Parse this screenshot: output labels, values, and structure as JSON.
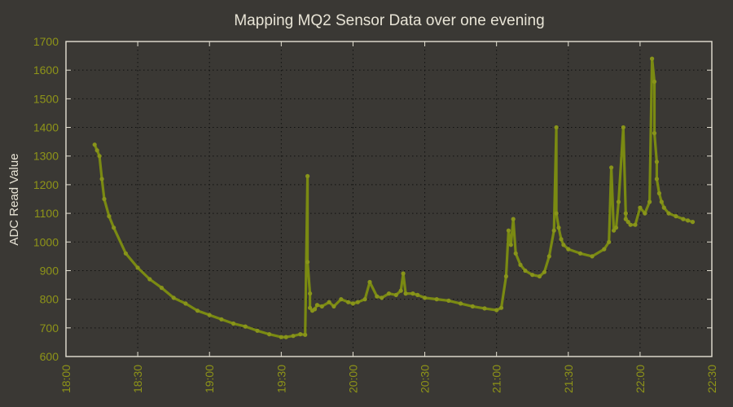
{
  "colors": {
    "background": "#3a3834",
    "series": "#7a8a12",
    "tick_text": "#8e9418",
    "label_text": "#e8e4d6",
    "grid": "#0f0f0f"
  },
  "chart_data": {
    "type": "line",
    "title": "Mapping MQ2 Sensor Data over one evening",
    "xlabel": "",
    "ylabel": "ADC Read Value",
    "xlim": [
      "18:00",
      "22:30"
    ],
    "ylim": [
      600,
      1700
    ],
    "x_ticks": [
      "18:00",
      "18:30",
      "19:00",
      "19:30",
      "20:00",
      "20:30",
      "21:00",
      "21:30",
      "22:00",
      "22:30"
    ],
    "y_ticks": [
      600,
      700,
      800,
      900,
      1000,
      1100,
      1200,
      1300,
      1400,
      1500,
      1600,
      1700
    ],
    "grid": true,
    "series": [
      {
        "name": "",
        "x": [
          "18:12",
          "18:13",
          "18:14",
          "18:15",
          "18:16",
          "18:18",
          "18:20",
          "18:25",
          "18:30",
          "18:35",
          "18:40",
          "18:45",
          "18:50",
          "18:55",
          "19:00",
          "19:05",
          "19:10",
          "19:15",
          "19:20",
          "19:25",
          "19:30",
          "19:32",
          "19:35",
          "19:38",
          "19:40",
          "19:41",
          "19:41",
          "19:42",
          "19:42",
          "19:43",
          "19:44",
          "19:45",
          "19:47",
          "19:50",
          "19:52",
          "19:55",
          "19:58",
          "20:00",
          "20:02",
          "20:05",
          "20:07",
          "20:10",
          "20:12",
          "20:15",
          "20:18",
          "20:20",
          "20:21",
          "20:22",
          "20:25",
          "20:27",
          "20:30",
          "20:35",
          "20:40",
          "20:45",
          "20:50",
          "20:55",
          "21:00",
          "21:02",
          "21:04",
          "21:05",
          "21:06",
          "21:07",
          "21:08",
          "21:10",
          "21:12",
          "21:15",
          "21:18",
          "21:20",
          "21:22",
          "21:24",
          "21:25",
          "21:25",
          "21:26",
          "21:27",
          "21:28",
          "21:30",
          "21:35",
          "21:40",
          "21:45",
          "21:47",
          "21:48",
          "21:49",
          "21:50",
          "21:51",
          "21:53",
          "21:54",
          "21:54",
          "21:55",
          "21:56",
          "21:58",
          "22:00",
          "22:02",
          "22:04",
          "22:05",
          "22:06",
          "22:06",
          "22:07",
          "22:07",
          "22:08",
          "22:09",
          "22:10",
          "22:12",
          "22:15",
          "22:18",
          "22:20",
          "22:22"
        ],
        "y": [
          1340,
          1320,
          1300,
          1220,
          1150,
          1090,
          1050,
          960,
          910,
          870,
          840,
          805,
          785,
          760,
          745,
          730,
          715,
          705,
          690,
          678,
          668,
          668,
          672,
          678,
          676,
          1230,
          930,
          820,
          770,
          760,
          765,
          780,
          775,
          790,
          775,
          800,
          790,
          785,
          790,
          800,
          860,
          810,
          805,
          820,
          815,
          830,
          890,
          820,
          820,
          815,
          805,
          800,
          795,
          785,
          775,
          768,
          762,
          770,
          880,
          1040,
          990,
          1080,
          960,
          920,
          900,
          885,
          880,
          895,
          950,
          1040,
          1400,
          1100,
          1050,
          1010,
          990,
          975,
          960,
          950,
          975,
          1000,
          1260,
          1040,
          1050,
          1140,
          1400,
          1100,
          1080,
          1070,
          1060,
          1060,
          1120,
          1100,
          1140,
          1640,
          1560,
          1380,
          1280,
          1220,
          1170,
          1140,
          1120,
          1100,
          1090,
          1080,
          1075,
          1070
        ]
      }
    ]
  }
}
